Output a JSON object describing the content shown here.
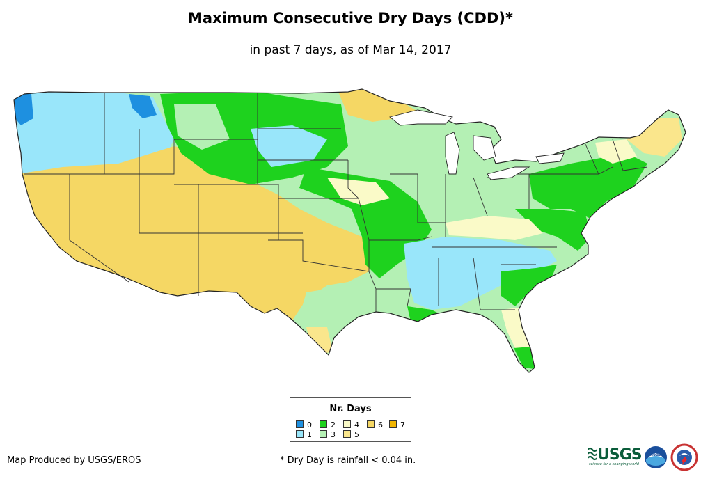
{
  "title": "Maximum Consecutive Dry Days (CDD)*",
  "subtitle": "in past 7 days, as of Mar 14, 2017",
  "legend": {
    "title": "Nr. Days",
    "items": [
      {
        "label": "0",
        "color": "#1e90e0"
      },
      {
        "label": "1",
        "color": "#99e6fa"
      },
      {
        "label": "2",
        "color": "#1ed21e"
      },
      {
        "label": "3",
        "color": "#b4f0b4"
      },
      {
        "label": "4",
        "color": "#fafac8"
      },
      {
        "label": "5",
        "color": "#fae68c"
      },
      {
        "label": "6",
        "color": "#f5d764"
      },
      {
        "label": "7",
        "color": "#f0b400"
      }
    ]
  },
  "credit": "Map Produced by USGS/EROS",
  "footnote": "* Dry Day is rainfall < 0.04 in.",
  "logos": {
    "usgs_text": "USGS",
    "usgs_tagline": "science for a changing world",
    "noaa_text": "noaa"
  }
}
